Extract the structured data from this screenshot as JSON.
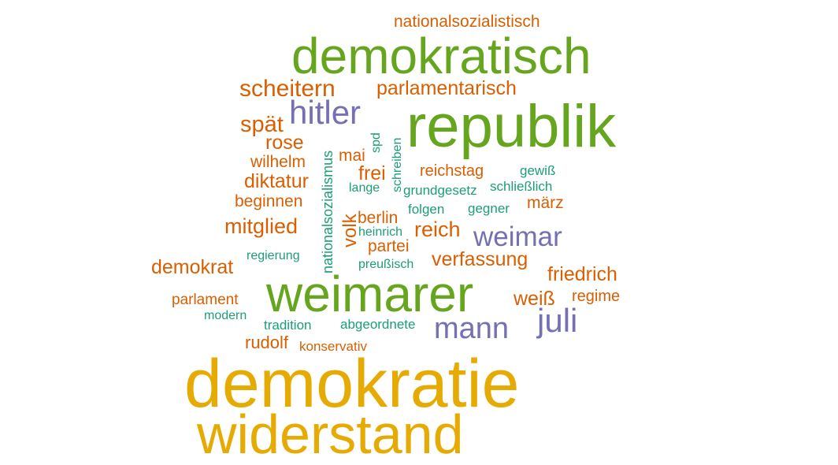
{
  "words": {
    "nationalsozialistisch": {
      "text": "nationalsozialistisch",
      "color": "#D95F02"
    },
    "demokratisch": {
      "text": "demokratisch",
      "color": "#66A61E"
    },
    "scheitern": {
      "text": "scheitern",
      "color": "#D95F02"
    },
    "parlamentarisch": {
      "text": "parlamentarisch",
      "color": "#D95F02"
    },
    "hitler": {
      "text": "hitler",
      "color": "#7570B3"
    },
    "republik": {
      "text": "republik",
      "color": "#66A61E"
    },
    "spaet": {
      "text": "spät",
      "color": "#D95F02"
    },
    "rose": {
      "text": "rose",
      "color": "#D95F02"
    },
    "wilhelm": {
      "text": "wilhelm",
      "color": "#D95F02"
    },
    "nationalsozialismus": {
      "text": "nationalsozialismus",
      "color": "#1B9E77"
    },
    "spd": {
      "text": "spd",
      "color": "#1B9E77"
    },
    "schreiben": {
      "text": "schreiben",
      "color": "#1B9E77"
    },
    "mai": {
      "text": "mai",
      "color": "#D95F02"
    },
    "frei": {
      "text": "frei",
      "color": "#D95F02"
    },
    "reichstag": {
      "text": "reichstag",
      "color": "#D95F02"
    },
    "gewiss": {
      "text": "gewiß",
      "color": "#1B9E77"
    },
    "diktatur": {
      "text": "diktatur",
      "color": "#D95F02"
    },
    "lange": {
      "text": "lange",
      "color": "#1B9E77"
    },
    "grundgesetz": {
      "text": "grundgesetz",
      "color": "#1B9E77"
    },
    "schliesslich": {
      "text": "schließlich",
      "color": "#1B9E77"
    },
    "beginnen": {
      "text": "beginnen",
      "color": "#D95F02"
    },
    "volk": {
      "text": "volk",
      "color": "#D95F02"
    },
    "folgen": {
      "text": "folgen",
      "color": "#1B9E77"
    },
    "gegner": {
      "text": "gegner",
      "color": "#1B9E77"
    },
    "maerz": {
      "text": "märz",
      "color": "#D95F02"
    },
    "berlin": {
      "text": "berlin",
      "color": "#D95F02"
    },
    "mitglied": {
      "text": "mitglied",
      "color": "#D95F02"
    },
    "reich": {
      "text": "reich",
      "color": "#D95F02"
    },
    "heinrich": {
      "text": "heinrich",
      "color": "#1B9E77"
    },
    "weimar": {
      "text": "weimar",
      "color": "#7570B3"
    },
    "partei": {
      "text": "partei",
      "color": "#D95F02"
    },
    "regierung": {
      "text": "regierung",
      "color": "#1B9E77"
    },
    "verfassung": {
      "text": "verfassung",
      "color": "#D95F02"
    },
    "demokrat": {
      "text": "demokrat",
      "color": "#D95F02"
    },
    "preussisch": {
      "text": "preußisch",
      "color": "#1B9E77"
    },
    "friedrich": {
      "text": "friedrich",
      "color": "#D95F02"
    },
    "weimarer": {
      "text": "weimarer",
      "color": "#66A61E"
    },
    "weiss": {
      "text": "weiß",
      "color": "#D95F02"
    },
    "regime": {
      "text": "regime",
      "color": "#D95F02"
    },
    "parlament": {
      "text": "parlament",
      "color": "#D95F02"
    },
    "juli": {
      "text": "juli",
      "color": "#7570B3"
    },
    "modern": {
      "text": "modern",
      "color": "#1B9E77"
    },
    "tradition": {
      "text": "tradition",
      "color": "#1B9E77"
    },
    "abgeordnete": {
      "text": "abgeordnete",
      "color": "#1B9E77"
    },
    "mann": {
      "text": "mann",
      "color": "#7570B3"
    },
    "rudolf": {
      "text": "rudolf",
      "color": "#D95F02"
    },
    "konservativ": {
      "text": "konservativ",
      "color": "#D95F02"
    },
    "demokratie": {
      "text": "demokratie",
      "color": "#E6AB02"
    },
    "widerstand": {
      "text": "widerstand",
      "color": "#E6AB02"
    }
  }
}
